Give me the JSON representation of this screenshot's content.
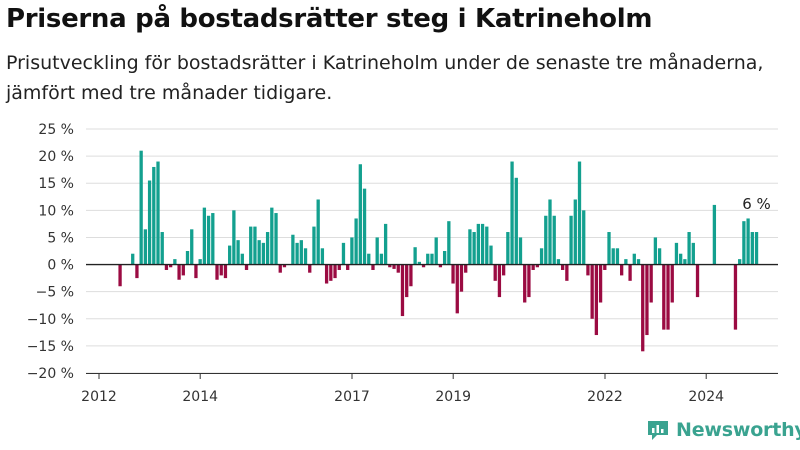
{
  "title": "Priserna på bostadsrätter steg i Katrineholm",
  "subtitle": "Prisutveckling för bostadsrätter i Katrineholm under de senaste tre månaderna, jämfört med tre månader tidigare.",
  "brand": {
    "name": "Newsworthy",
    "logo_icon": "bar-chart-logo-icon"
  },
  "colors": {
    "positive": "#13a08f",
    "negative": "#9b0b42",
    "grid": "#dddddd",
    "axis": "#222222",
    "brand": "#3aa390"
  },
  "chart_data": {
    "type": "bar",
    "x_start": 2012.0,
    "x_step": 0.0833,
    "ylim": [
      -20,
      25
    ],
    "yticks": [
      25,
      20,
      15,
      10,
      5,
      0,
      -5,
      -10,
      -15,
      -20
    ],
    "ytick_labels": [
      "25 %",
      "20 %",
      "15 %",
      "10 %",
      "5 %",
      "0 %",
      "−5 %",
      "−10 %",
      "−15 %",
      "−20 %"
    ],
    "xticks": [
      2012,
      2014,
      2017,
      2019,
      2022,
      2024
    ],
    "xtick_labels": [
      "2012",
      "2014",
      "2017",
      "2019",
      "2022",
      "2024"
    ],
    "grid": true,
    "annotation": {
      "text": "6 %"
    },
    "values": [
      null,
      null,
      null,
      null,
      null,
      -4.0,
      null,
      null,
      2.0,
      -2.5,
      21.0,
      6.5,
      15.5,
      18.0,
      19.0,
      6.0,
      -1.0,
      -0.5,
      1.0,
      -2.8,
      -2.0,
      2.5,
      6.5,
      -2.5,
      1.0,
      10.5,
      9.0,
      9.5,
      -2.8,
      -2.0,
      -2.5,
      3.5,
      10.0,
      4.5,
      2.0,
      -1.0,
      7.0,
      7.0,
      4.5,
      4.0,
      6.0,
      10.5,
      9.5,
      -1.5,
      -0.5,
      null,
      5.5,
      4.0,
      4.5,
      3.0,
      -1.5,
      7.0,
      12.0,
      3.0,
      -3.5,
      -3.0,
      -2.5,
      -1.0,
      4.0,
      -1.0,
      5.0,
      8.5,
      18.5,
      14.0,
      2.0,
      -1.0,
      5.0,
      2.0,
      7.5,
      -0.5,
      -0.8,
      -1.5,
      -9.5,
      -6.0,
      -4.0,
      3.2,
      0.5,
      -0.5,
      2.0,
      2.0,
      5.0,
      -0.5,
      2.5,
      8.0,
      -3.5,
      -9.0,
      -5.0,
      -1.5,
      6.5,
      6.0,
      7.5,
      7.5,
      7.0,
      3.5,
      -3.0,
      -6.0,
      -2.0,
      6.0,
      19.0,
      16.0,
      5.0,
      -7.0,
      -6.0,
      -1.0,
      -0.5,
      3.0,
      9.0,
      12.0,
      9.0,
      1.0,
      -1.0,
      -3.0,
      9.0,
      12.0,
      19.0,
      10.0,
      -2.0,
      -10.0,
      -13.0,
      -7.0,
      -1.0,
      6.0,
      3.0,
      3.0,
      -2.0,
      1.0,
      -3.0,
      2.0,
      1.0,
      -16.0,
      -13.0,
      -7.0,
      5.0,
      3.0,
      -12.0,
      -12.0,
      -7.0,
      4.0,
      2.0,
      1.0,
      6.0,
      4.0,
      -6.0,
      null,
      null,
      null,
      11.0,
      null,
      null,
      null,
      null,
      -12.0,
      1.0,
      8.0,
      8.5,
      6.0,
      6.0
    ]
  }
}
